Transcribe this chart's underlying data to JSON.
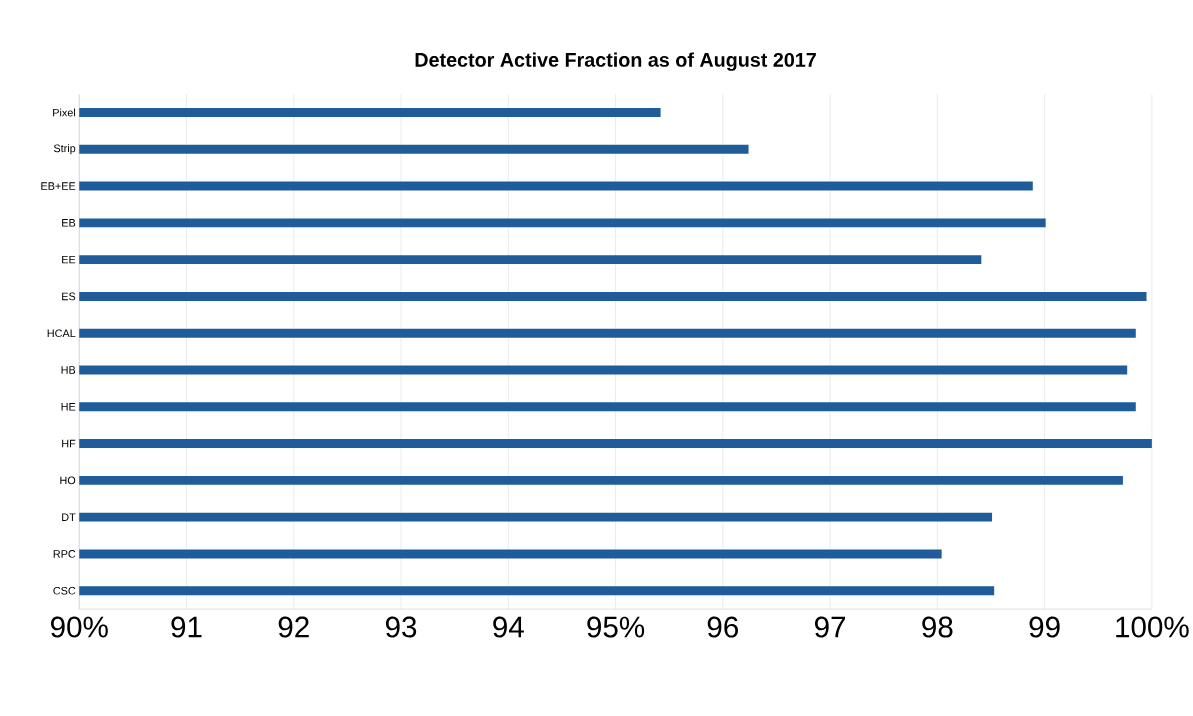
{
  "chart_data": {
    "type": "bar",
    "orientation": "horizontal",
    "title": "Detector Active Fraction as of August 2017",
    "categories": [
      "Pixel",
      "Strip",
      "EB+EE",
      "EB",
      "EE",
      "ES",
      "HCAL",
      "HB",
      "HE",
      "HF",
      "HO",
      "DT",
      "RPC",
      "CSC"
    ],
    "values": [
      95.42,
      96.24,
      98.89,
      99.01,
      98.41,
      99.95,
      99.85,
      99.77,
      99.85,
      100,
      99.73,
      98.51,
      98.04,
      98.53
    ],
    "color": "#1f5c99",
    "xlim": [
      90,
      100
    ],
    "xticks": [
      {
        "value": 90,
        "label": "90%"
      },
      {
        "value": 91,
        "label": "91"
      },
      {
        "value": 92,
        "label": "92"
      },
      {
        "value": 93,
        "label": "93"
      },
      {
        "value": 94,
        "label": "94"
      },
      {
        "value": 95,
        "label": "95%"
      },
      {
        "value": 96,
        "label": "96"
      },
      {
        "value": 97,
        "label": "97"
      },
      {
        "value": 98,
        "label": "98"
      },
      {
        "value": 99,
        "label": "99"
      },
      {
        "value": 100,
        "label": "100%"
      }
    ],
    "grid": "x"
  }
}
